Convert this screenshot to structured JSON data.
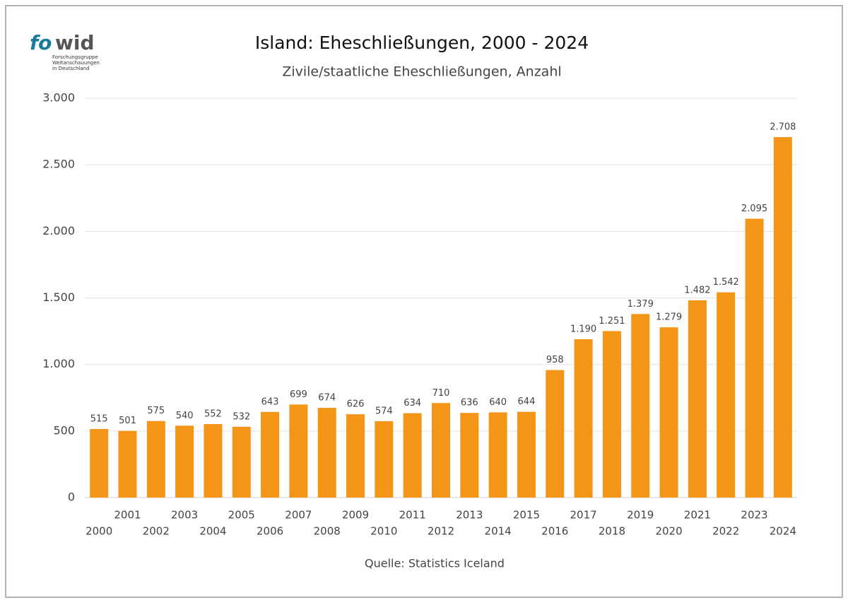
{
  "logo": {
    "mark_left": "fo",
    "mark_right": "wid",
    "lines": [
      "Forschungsgruppe",
      "Weltanschauungen",
      "in Deutschland"
    ]
  },
  "chart_data": {
    "type": "bar",
    "title": "Island: Eheschließungen, 2000 - 2024",
    "subtitle": "Zivile/staatliche Eheschließungen, Anzahl",
    "source": "Quelle: Statistics Iceland",
    "categories": [
      "2000",
      "2001",
      "2002",
      "2003",
      "2004",
      "2005",
      "2006",
      "2007",
      "2008",
      "2009",
      "2010",
      "2011",
      "2012",
      "2013",
      "2014",
      "2015",
      "2016",
      "2017",
      "2018",
      "2019",
      "2020",
      "2021",
      "2022",
      "2023",
      "2024"
    ],
    "values": [
      515,
      501,
      575,
      540,
      552,
      532,
      643,
      699,
      674,
      626,
      574,
      634,
      710,
      636,
      640,
      644,
      958,
      1190,
      1251,
      1379,
      1279,
      1482,
      1542,
      2095,
      2708
    ],
    "value_labels": [
      "515",
      "501",
      "575",
      "540",
      "552",
      "532",
      "643",
      "699",
      "674",
      "626",
      "574",
      "634",
      "710",
      "636",
      "640",
      "644",
      "958",
      "1.190",
      "1.251",
      "1.379",
      "1.279",
      "1.482",
      "1.542",
      "2.095",
      "2.708"
    ],
    "color": "#f59517",
    "ylim": [
      0,
      3000
    ],
    "yticks": [
      0,
      500,
      {
        "value": 1000,
        "label": "1.000"
      },
      {
        "value": 1500,
        "label": "1.500"
      },
      {
        "value": 2000,
        "label": "2.000"
      },
      {
        "value": 2500,
        "label": "2.500"
      },
      {
        "value": 3000,
        "label": "3.000"
      }
    ],
    "grid": true
  }
}
